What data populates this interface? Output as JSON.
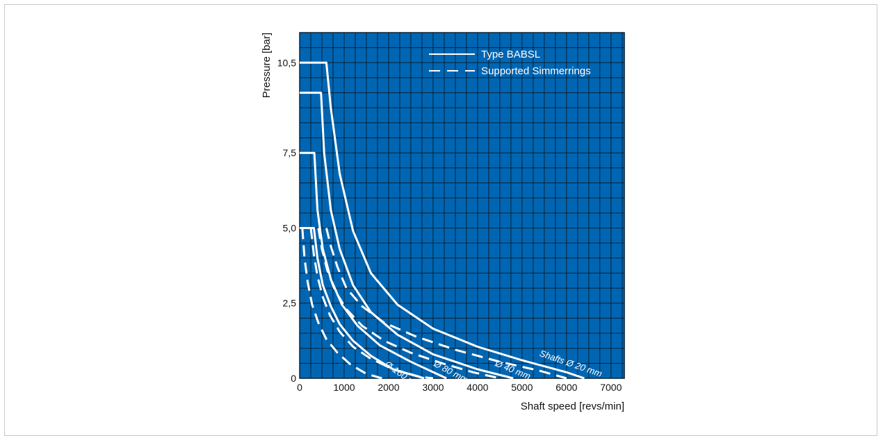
{
  "chart_data": {
    "type": "line",
    "xlabel": "Shaft speed [revs/min]",
    "ylabel": "Pressure [bar]",
    "xlim": [
      0,
      7300
    ],
    "ylim": [
      0,
      11.5
    ],
    "x_ticks": [
      0,
      1000,
      2000,
      3000,
      4000,
      5000,
      6000,
      7000
    ],
    "x_tick_labels": [
      "0",
      "1000",
      "2000",
      "3000",
      "4000",
      "5000",
      "6000",
      "7000"
    ],
    "y_ticks": [
      0,
      2.5,
      5.0,
      7.5,
      10.5
    ],
    "y_tick_labels": [
      "0",
      "2,5",
      "5,0",
      "7,5",
      "10,5"
    ],
    "grid": true,
    "background_color": "#0066b3",
    "grid_color": "#0a2236",
    "line_color": "#ffffff",
    "legend": {
      "placement": "top-right",
      "entries": [
        {
          "label": "Type BABSL",
          "style": "solid"
        },
        {
          "label": "Supported Simmerrings",
          "style": "dashed"
        }
      ]
    },
    "series": [
      {
        "style": "solid",
        "x": [
          0,
          600,
          600,
          700,
          900,
          1200,
          1600,
          2200,
          3000,
          4000,
          5000,
          6000,
          6400
        ],
        "y": [
          10.5,
          10.5,
          10.5,
          9.0,
          6.8,
          4.9,
          3.5,
          2.45,
          1.65,
          1.05,
          0.6,
          0.2,
          0
        ]
      },
      {
        "style": "solid",
        "x": [
          0,
          480,
          480,
          550,
          700,
          900,
          1200,
          1600,
          2200,
          3000,
          4000,
          4800
        ],
        "y": [
          9.5,
          9.5,
          9.5,
          7.5,
          5.6,
          4.3,
          3.1,
          2.2,
          1.45,
          0.8,
          0.3,
          0
        ]
      },
      {
        "style": "solid",
        "x": [
          0,
          330,
          330,
          400,
          520,
          700,
          950,
          1300,
          1800,
          2500,
          3300
        ],
        "y": [
          7.5,
          7.5,
          7.5,
          5.6,
          4.3,
          3.3,
          2.45,
          1.75,
          1.1,
          0.55,
          0
        ]
      },
      {
        "style": "solid",
        "x": [
          0,
          320,
          320,
          400,
          520,
          700,
          900,
          1200,
          1600,
          2100,
          2800
        ],
        "y": [
          5.0,
          5.0,
          5.0,
          4.0,
          3.1,
          2.4,
          1.8,
          1.25,
          0.75,
          0.3,
          0
        ]
      },
      {
        "style": "dashed",
        "x": [
          600,
          700,
          850,
          1050,
          1400,
          1900,
          2600,
          3500,
          4500,
          5400,
          6000
        ],
        "y": [
          5.0,
          4.4,
          3.7,
          3.0,
          2.4,
          1.85,
          1.4,
          0.95,
          0.55,
          0.25,
          0
        ]
      },
      {
        "style": "dashed",
        "x": [
          420,
          500,
          620,
          800,
          1050,
          1400,
          1900,
          2500,
          3200,
          3900,
          4500
        ],
        "y": [
          5.0,
          4.3,
          3.6,
          2.9,
          2.3,
          1.75,
          1.25,
          0.85,
          0.5,
          0.2,
          0
        ]
      },
      {
        "style": "dashed",
        "x": [
          250,
          320,
          400,
          520,
          680,
          900,
          1200,
          1600,
          2100,
          2700,
          3000
        ],
        "y": [
          5.0,
          4.1,
          3.4,
          2.7,
          2.1,
          1.55,
          1.05,
          0.65,
          0.3,
          0.05,
          0
        ]
      },
      {
        "style": "dashed",
        "x": [
          60,
          110,
          180,
          280,
          420,
          600,
          850,
          1150,
          1500,
          1850
        ],
        "y": [
          5.0,
          4.0,
          3.2,
          2.45,
          1.85,
          1.3,
          0.85,
          0.45,
          0.15,
          0
        ]
      }
    ],
    "annotations": [
      {
        "text": "Shafts Ø 20 mm",
        "x": 5380,
        "y": 0.75,
        "angle": 19
      },
      {
        "text": "Ø 40 mm",
        "x": 4380,
        "y": 0.42,
        "angle": 22
      },
      {
        "text": "Ø 80 mm",
        "x": 3000,
        "y": 0.42,
        "angle": 28
      },
      {
        "text": "Ø 160 mm",
        "x": 1900,
        "y": 0.42,
        "angle": 35
      }
    ]
  }
}
